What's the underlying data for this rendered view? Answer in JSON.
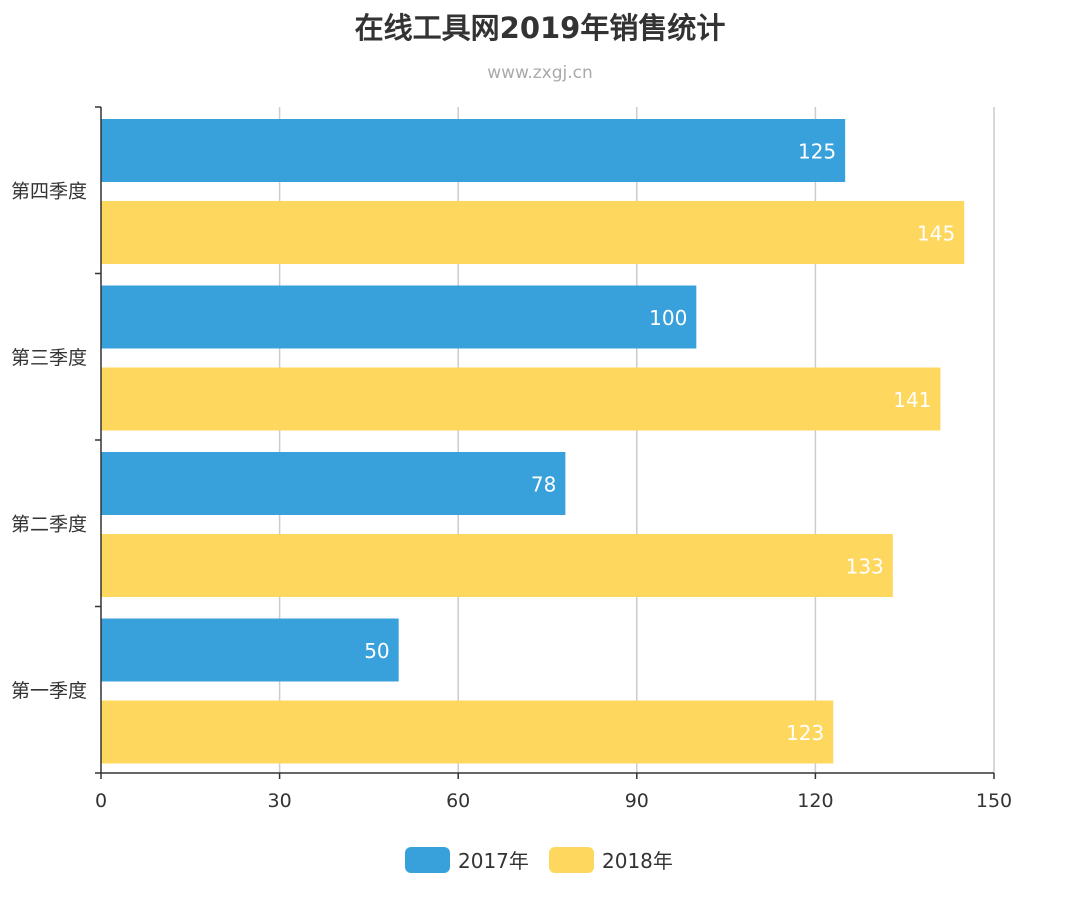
{
  "chart_data": {
    "type": "bar",
    "orientation": "horizontal",
    "title": "在线工具网2019年销售统计",
    "subtitle": "www.zxgj.cn",
    "categories": [
      "第一季度",
      "第二季度",
      "第三季度",
      "第四季度"
    ],
    "series": [
      {
        "name": "2017年",
        "color": "#38a1db",
        "values": [
          50,
          78,
          100,
          125
        ]
      },
      {
        "name": "2018年",
        "color": "#fed75e",
        "values": [
          123,
          133,
          141,
          145
        ]
      }
    ],
    "xlim": [
      0,
      150
    ],
    "xticks": [
      0,
      30,
      60,
      90,
      120,
      150
    ],
    "grid": true,
    "legend_position": "bottom-center",
    "xlabel": "",
    "ylabel": ""
  }
}
